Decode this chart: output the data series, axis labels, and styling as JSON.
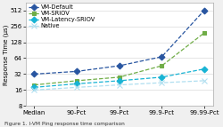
{
  "x_labels": [
    "Median",
    "90-Pct",
    "99-Pct",
    "99.9-Pct",
    "99.99-Pct"
  ],
  "series": {
    "VM-Default": [
      32,
      36,
      46,
      68,
      512
    ],
    "VM-SRIOV": [
      20,
      24,
      28,
      46,
      192
    ],
    "VM-Latency-SRIOV": [
      18,
      21,
      24,
      28,
      40
    ],
    "Native": [
      16,
      18,
      20,
      22,
      24
    ]
  },
  "colors": {
    "VM-Default": "#2855a0",
    "VM-SRIOV": "#70ad47",
    "VM-Latency-SRIOV": "#17b3d4",
    "Native": "#b0dff0"
  },
  "markers": {
    "VM-Default": "D",
    "VM-SRIOV": "s",
    "VM-Latency-SRIOV": "D",
    "Native": "x"
  },
  "ylabel": "Response Time (µs)",
  "caption": "Figure 1. I-VM Ping response time comparison",
  "ylim_log": [
    8,
    700
  ],
  "yticks": [
    8,
    16,
    32,
    64,
    128,
    256,
    512
  ],
  "ytick_labels": [
    "8",
    "16",
    "32",
    "64",
    "128",
    "256",
    "512"
  ],
  "background_color": "#f0f0f0",
  "axis_fontsize": 5.0,
  "legend_fontsize": 4.8,
  "marker_size": 3.5,
  "linewidth": 0.9
}
